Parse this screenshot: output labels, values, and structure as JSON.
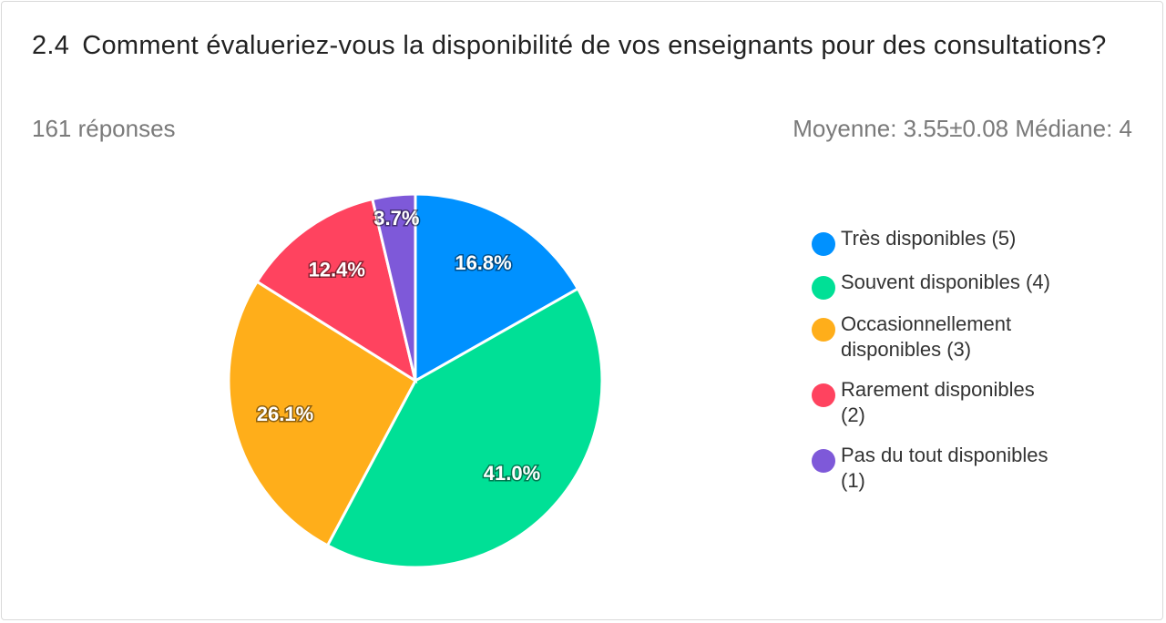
{
  "question": {
    "number": "2.4",
    "text": "Comment évalueriez-vous la disponibilité de vos enseignants pour des consultations?"
  },
  "responses_label": "161 réponses",
  "stats_label": "Moyenne: 3.55±0.08 Médiane: 4",
  "chart_data": {
    "type": "pie",
    "slices": [
      {
        "label": "Très disponibles (5)",
        "value": 16.8,
        "display": "16.8%",
        "color": "#0091ff"
      },
      {
        "label": "Souvent disponibles (4)",
        "value": 41.0,
        "display": "41.0%",
        "color": "#00e096"
      },
      {
        "label": "Occasionnellement disponibles (3)",
        "value": 26.1,
        "display": "26.1%",
        "color": "#ffae1a"
      },
      {
        "label": "Rarement disponibles (2)",
        "value": 12.4,
        "display": "12.4%",
        "color": "#ff435f"
      },
      {
        "label": "Pas du tout disponibles (1)",
        "value": 3.7,
        "display": "3.7%",
        "color": "#7e59d9"
      }
    ],
    "legend_position": "right"
  }
}
